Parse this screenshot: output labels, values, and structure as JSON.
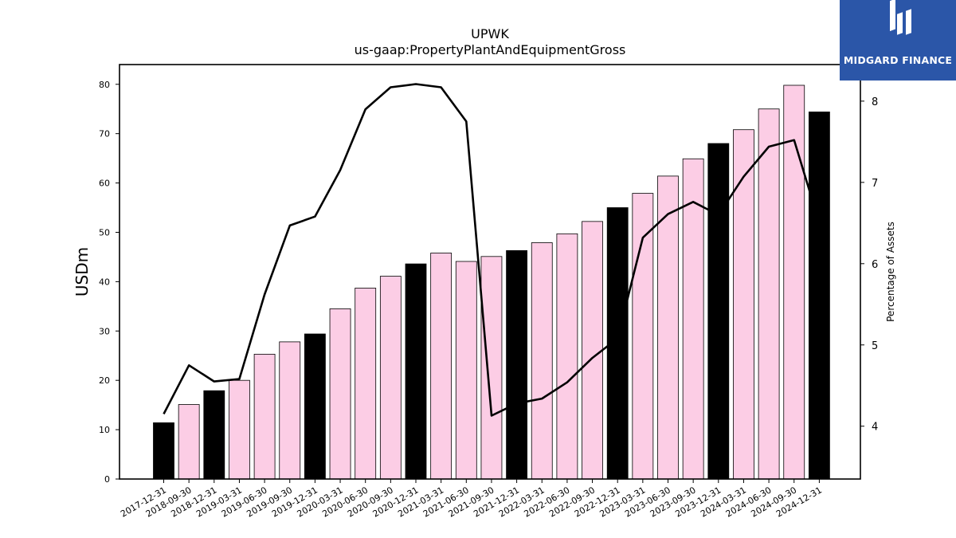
{
  "chart_data": {
    "type": "bar",
    "title": "UPWK",
    "subtitle": "us-gaap:PropertyPlantAndEquipmentGross",
    "ylabel": "USDm",
    "y2label": "Percentage of Assets",
    "ylim": [
      0,
      84
    ],
    "y2lim": [
      3.35,
      8.45
    ],
    "yticks": [
      0,
      10,
      20,
      30,
      40,
      50,
      60,
      70,
      80
    ],
    "y2ticks": [
      4,
      5,
      6,
      7,
      8
    ],
    "grid": false,
    "categories": [
      "2017-12-31",
      "2018-09-30",
      "2018-12-31",
      "2019-03-31",
      "2019-06-30",
      "2019-09-30",
      "2019-12-31",
      "2020-03-31",
      "2020-06-30",
      "2020-09-30",
      "2020-12-31",
      "2021-03-31",
      "2021-06-30",
      "2021-09-30",
      "2021-12-31",
      "2022-03-31",
      "2022-06-30",
      "2022-09-30",
      "2022-12-31",
      "2023-03-31",
      "2023-06-30",
      "2023-09-30",
      "2023-12-31",
      "2024-03-31",
      "2024-06-30",
      "2024-09-30",
      "2024-12-31"
    ],
    "series": [
      {
        "type": "bar",
        "values": [
          11.4,
          15.1,
          17.9,
          20.0,
          25.3,
          27.8,
          29.4,
          34.5,
          38.7,
          41.1,
          43.6,
          45.8,
          44.1,
          45.1,
          46.3,
          47.9,
          49.7,
          52.2,
          55.0,
          57.9,
          61.4,
          64.9,
          68.0,
          70.8,
          75.0,
          79.8,
          74.4
        ],
        "fiscal_year_end": [
          true,
          false,
          true,
          false,
          false,
          false,
          true,
          false,
          false,
          false,
          true,
          false,
          false,
          false,
          true,
          false,
          false,
          false,
          true,
          false,
          false,
          false,
          true,
          false,
          false,
          false,
          true
        ]
      },
      {
        "type": "line",
        "axis": "right",
        "values": [
          4.15,
          4.75,
          4.55,
          4.58,
          5.62,
          6.47,
          6.58,
          7.15,
          7.9,
          8.17,
          8.21,
          8.17,
          7.75,
          4.13,
          4.28,
          4.34,
          4.54,
          4.84,
          5.08,
          6.32,
          6.61,
          6.76,
          6.6,
          7.07,
          7.44,
          7.52,
          6.5
        ]
      }
    ],
    "colors": {
      "bar_fiscal_year_end": "#000000",
      "bar_other": "#fccde5",
      "line": "#000000"
    }
  },
  "logo": {
    "text": "MIDGARD FINANCE",
    "background": "#2b56a8"
  }
}
